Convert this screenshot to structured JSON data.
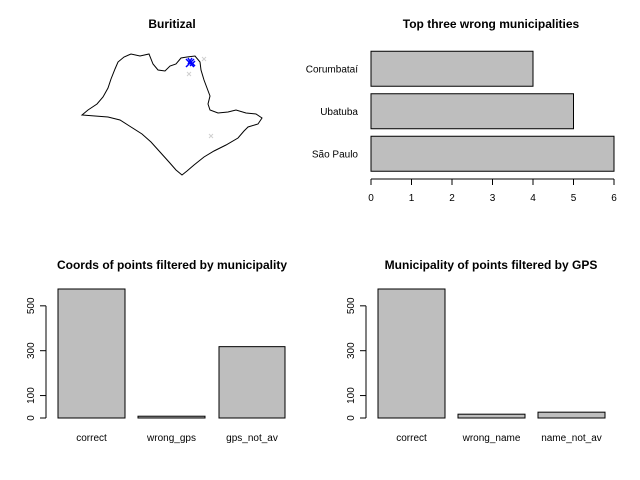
{
  "colors": {
    "bar_fill": "#bebebe",
    "axis": "#000000",
    "background": "#ffffff",
    "point_highlight": "#0000ff",
    "point_other": "#d0d0d0"
  },
  "chart_data": [
    {
      "id": "map",
      "type": "scatter",
      "title": "Buritizal",
      "note": "map panel: state outline with plotted points"
    },
    {
      "id": "wrong",
      "type": "bar",
      "orientation": "horizontal",
      "title": "Top three wrong municipalities",
      "categories": [
        "São Paulo",
        "Ubatuba",
        "Corumbataí"
      ],
      "values": [
        6,
        5,
        4
      ],
      "xlim": [
        0,
        6
      ],
      "xticks": [
        0,
        1,
        2,
        3,
        4,
        5,
        6
      ]
    },
    {
      "id": "coords",
      "type": "bar",
      "title": "Coords of points filtered by municipality",
      "categories": [
        "correct",
        "wrong_gps",
        "gps_not_av"
      ],
      "values": [
        575,
        8,
        318
      ],
      "ylim": [
        0,
        575
      ],
      "yticks": [
        0,
        100,
        300,
        500
      ]
    },
    {
      "id": "muni",
      "type": "bar",
      "title": "Municipality of points filtered by GPS",
      "categories": [
        "correct",
        "wrong_name",
        "name_not_av"
      ],
      "values": [
        575,
        17,
        26
      ],
      "ylim": [
        0,
        575
      ],
      "yticks": [
        0,
        100,
        300,
        500
      ]
    }
  ]
}
